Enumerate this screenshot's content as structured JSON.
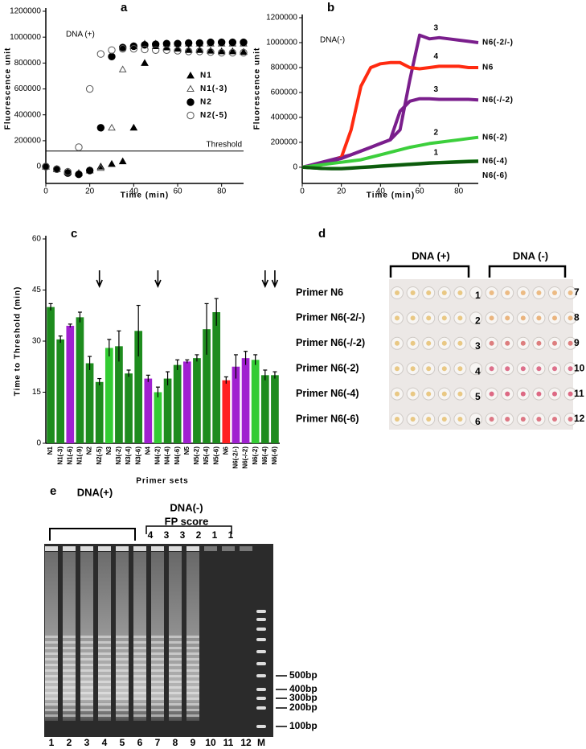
{
  "chart_data": [
    {
      "type": "scatter",
      "panel": "a",
      "annotation": "DNA (+)",
      "x_label": "Time (min)",
      "y_label": "Fluorescence unit",
      "x": [
        0,
        5,
        10,
        15,
        20,
        25,
        30,
        35,
        40,
        45,
        50,
        55,
        60,
        65,
        70,
        75,
        80,
        85,
        90
      ],
      "xlim": [
        0,
        90
      ],
      "ylim": [
        -130000,
        1200000
      ],
      "xticks": [
        0,
        20,
        40,
        60,
        80
      ],
      "yticks": [
        0,
        200000,
        400000,
        600000,
        800000,
        1000000,
        1200000
      ],
      "threshold": {
        "value": 120000,
        "label": "Threshold"
      },
      "legend": "center right",
      "series": [
        {
          "name": "N1",
          "marker": "triangle",
          "filled": true,
          "color": "#000000",
          "values": [
            0,
            -20000,
            -40000,
            -50000,
            -30000,
            0,
            20000,
            40000,
            300000,
            800000,
            930000,
            920000,
            910000,
            900000,
            900000,
            895000,
            890000,
            890000,
            885000
          ]
        },
        {
          "name": "N1(-3)",
          "marker": "triangle",
          "filled": false,
          "color": "#555555",
          "values": [
            0,
            -20000,
            -40000,
            -50000,
            -30000,
            -10000,
            300000,
            750000,
            930000,
            950000,
            950000,
            950000,
            950000,
            950000,
            950000,
            950000,
            950000,
            950000,
            950000
          ]
        },
        {
          "name": "N2",
          "marker": "circle",
          "filled": true,
          "color": "#000000",
          "values": [
            0,
            -20000,
            -50000,
            -60000,
            -30000,
            300000,
            850000,
            920000,
            930000,
            940000,
            945000,
            950000,
            950000,
            955000,
            955000,
            960000,
            960000,
            960000,
            960000
          ]
        },
        {
          "name": "N2(-5)",
          "marker": "circle",
          "filled": false,
          "color": "#555555",
          "values": [
            0,
            -20000,
            -40000,
            150000,
            600000,
            870000,
            900000,
            910000,
            910000,
            905000,
            900000,
            900000,
            895000,
            890000,
            890000,
            885000,
            880000,
            880000,
            880000
          ]
        }
      ]
    },
    {
      "type": "line",
      "panel": "b",
      "annotation": "DNA(-)",
      "x_label": "Time (min)",
      "y_label": "Fluorescence unit",
      "x": [
        0,
        5,
        10,
        15,
        20,
        25,
        30,
        35,
        40,
        45,
        50,
        55,
        60,
        65,
        70,
        75,
        80,
        85,
        90
      ],
      "xlim": [
        0,
        90
      ],
      "ylim": [
        -130000,
        1200000
      ],
      "xticks": [
        0,
        20,
        40,
        60,
        80
      ],
      "yticks": [
        0,
        200000,
        400000,
        600000,
        800000,
        1000000,
        1200000
      ],
      "series": [
        {
          "name": "N6(-2/-)",
          "color": "#7a1e8c",
          "score": 3,
          "values": [
            0,
            20000,
            40000,
            60000,
            80000,
            100000,
            130000,
            160000,
            190000,
            220000,
            300000,
            700000,
            1060000,
            1030000,
            1040000,
            1030000,
            1020000,
            1010000,
            1000000
          ]
        },
        {
          "name": "N6",
          "color": "#ff2a10",
          "score": 4,
          "values": [
            0,
            10000,
            20000,
            40000,
            80000,
            300000,
            650000,
            800000,
            830000,
            840000,
            840000,
            800000,
            790000,
            800000,
            810000,
            810000,
            810000,
            800000,
            800000
          ]
        },
        {
          "name": "N6(-/-2)",
          "color": "#7a1e8c",
          "score": 3,
          "values": [
            0,
            15000,
            30000,
            50000,
            70000,
            100000,
            130000,
            160000,
            190000,
            220000,
            450000,
            530000,
            550000,
            550000,
            545000,
            545000,
            545000,
            545000,
            540000
          ]
        },
        {
          "name": "N6(-2)",
          "color": "#3ccf3c",
          "score": 2,
          "values": [
            0,
            10000,
            20000,
            30000,
            40000,
            50000,
            60000,
            80000,
            100000,
            120000,
            140000,
            160000,
            175000,
            190000,
            200000,
            210000,
            220000,
            230000,
            240000
          ]
        },
        {
          "name": "N6(-4)",
          "color": "#229022",
          "score": 1,
          "values": [
            0,
            -5000,
            -10000,
            -10000,
            -10000,
            -5000,
            0,
            5000,
            10000,
            15000,
            20000,
            25000,
            30000,
            35000,
            38000,
            42000,
            45000,
            48000,
            50000
          ]
        },
        {
          "name": "N6(-6)",
          "color": "#0d5a0d",
          "values": [
            0,
            -5000,
            -10000,
            -12000,
            -12000,
            -8000,
            -3000,
            2000,
            7000,
            12000,
            17000,
            22000,
            27000,
            32000,
            35000,
            38000,
            41000,
            44000,
            47000
          ]
        }
      ]
    },
    {
      "type": "bar",
      "panel": "c",
      "x_label": "Primer sets",
      "y_label": "Time to Threshold (min)",
      "categories": [
        "N1",
        "N1(-3)",
        "N1(-6)",
        "N1(-9)",
        "N2",
        "N2(-5)",
        "N3",
        "N3(-2)",
        "N3(-4)",
        "N3(-6)",
        "N4",
        "N4(-2)",
        "N4(-4)",
        "N4(-6)",
        "N5",
        "N5(-2)",
        "N5(-4)",
        "N5(-6)",
        "N6",
        "N6(-2/-)",
        "N6(-/-2)",
        "N6(-2)",
        "N6(-4)",
        "N6(-6)"
      ],
      "values": [
        40,
        30.5,
        34.5,
        37,
        23.5,
        18,
        28,
        28.5,
        20.5,
        33,
        19,
        15,
        19,
        23,
        24,
        25,
        33.5,
        38.5,
        18.5,
        22.5,
        25,
        24.5,
        20,
        20
      ],
      "errors": [
        1,
        1,
        0.5,
        1.5,
        2,
        1,
        2.5,
        4.5,
        1,
        7.5,
        1,
        1.5,
        2,
        1.5,
        0.5,
        1,
        7.5,
        4,
        1,
        3.5,
        2,
        1.5,
        1.5,
        1
      ],
      "colors": [
        "#1e8c1e",
        "#1e8c1e",
        "#a020d0",
        "#1e8c1e",
        "#1e8c1e",
        "#1e8c1e",
        "#33cc33",
        "#1e8c1e",
        "#1e8c1e",
        "#1e8c1e",
        "#a020d0",
        "#33cc33",
        "#1e8c1e",
        "#1e8c1e",
        "#a020d0",
        "#1e8c1e",
        "#1e8c1e",
        "#1e8c1e",
        "#ff2020",
        "#a020d0",
        "#a020d0",
        "#33cc33",
        "#1e8c1e",
        "#1e8c1e"
      ],
      "ylim": [
        0,
        60
      ],
      "yticks": [
        0,
        15,
        30,
        45,
        60
      ]
    }
  ],
  "plate": {
    "panel": "d",
    "groups": [
      "DNA (+)",
      "DNA (-)"
    ],
    "rows": [
      {
        "primer": "Primer N6",
        "left": "1",
        "right": "7"
      },
      {
        "primer": "Primer N6(-2/-)",
        "left": "2",
        "right": "8"
      },
      {
        "primer": "Primer N6(-/-2)",
        "left": "3",
        "right": "9"
      },
      {
        "primer": "Primer N6(-2)",
        "left": "4",
        "right": "10"
      },
      {
        "primer": "Primer N6(-4)",
        "left": "5",
        "right": "11"
      },
      {
        "primer": "Primer N6(-6)",
        "left": "6",
        "right": "12"
      }
    ]
  },
  "gel": {
    "panel": "e",
    "groups": [
      "DNA(+)",
      "DNA(-)"
    ],
    "score_title": "FP score",
    "scores": [
      "4",
      "3",
      "3",
      "2",
      "1",
      "1"
    ],
    "lanes": [
      "1",
      "2",
      "3",
      "4",
      "5",
      "6",
      "7",
      "8",
      "9",
      "10",
      "11",
      "12",
      "M"
    ],
    "sizes": [
      "500bp",
      "400bp",
      "300bp",
      "200bp",
      "100bp"
    ]
  }
}
